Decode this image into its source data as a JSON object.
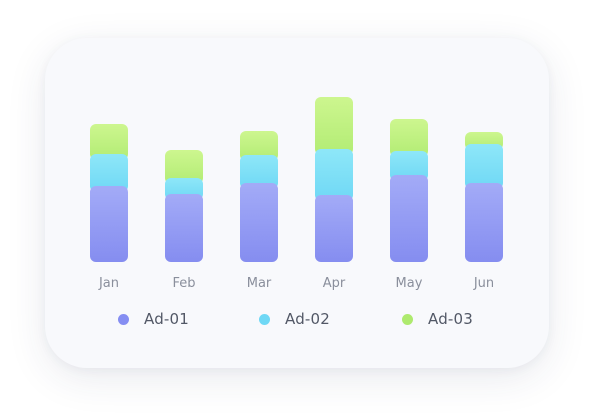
{
  "chart_data": {
    "type": "bar",
    "stacked": true,
    "categories": [
      "Jan",
      "Feb",
      "Mar",
      "Apr",
      "May",
      "Jun"
    ],
    "series": [
      {
        "name": "Ad-01",
        "values": [
          76,
          68,
          79,
          67,
          87,
          79
        ]
      },
      {
        "name": "Ad-02",
        "values": [
          32,
          16,
          28,
          46,
          24,
          39
        ]
      },
      {
        "name": "Ad-03",
        "values": [
          30,
          28,
          24,
          52,
          32,
          12
        ]
      }
    ],
    "colors": {
      "Ad-01": [
        "#a3abf7",
        "#858df0"
      ],
      "Ad-02": [
        "#8ee7f8",
        "#6fd8f5"
      ],
      "Ad-03": [
        "#cdf68f",
        "#b2ec74"
      ]
    },
    "legend_dot_colors": {
      "Ad-01": "#858ef2",
      "Ad-02": "#6fd8f5",
      "Ad-03": "#aeea6e"
    },
    "ylim": [
      0,
      165
    ],
    "grid": false,
    "legend_position": "bottom"
  }
}
